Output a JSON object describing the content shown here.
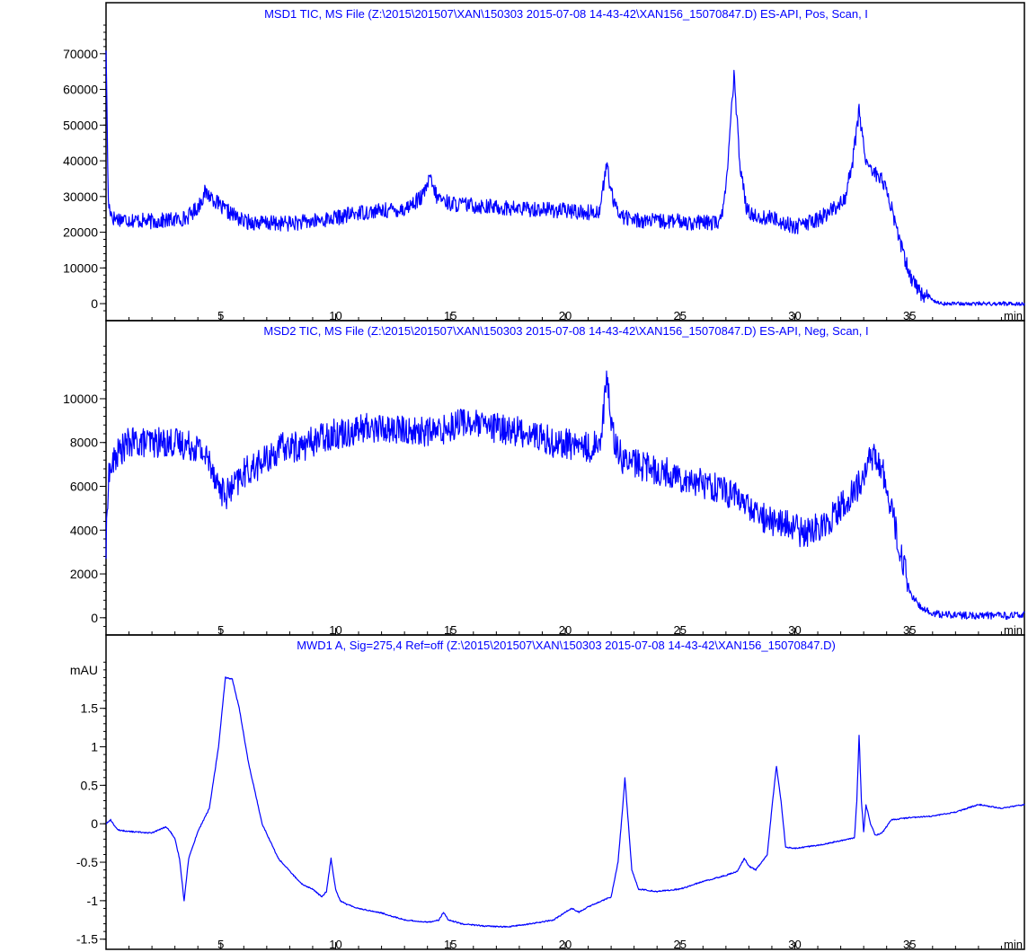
{
  "panels": [
    {
      "title": "MSD1 TIC, MS File (Z:\\2015\\201507\\XAN\\150303 2015-07-08 14-43-42\\XAN156_15070847.D)   ES-API, Pos, Scan, I"
    },
    {
      "title": "MSD2 TIC, MS File (Z:\\2015\\201507\\XAN\\150303 2015-07-08 14-43-42\\XAN156_15070847.D)   ES-API, Neg, Scan, I"
    },
    {
      "title": "MWD1 A, Sig=275,4 Ref=off (Z:\\2015\\201507\\XAN\\150303 2015-07-08 14-43-42\\XAN156_15070847.D)"
    }
  ],
  "chart_data": [
    {
      "type": "line",
      "title": "MSD1 TIC, MS File (Z:\\2015\\201507\\XAN\\150303 2015-07-08 14-43-42\\XAN156_15070847.D)   ES-API, Pos, Scan, I",
      "xlabel": "min",
      "ylabel": "",
      "xlim": [
        0,
        40
      ],
      "ylim": [
        -3000,
        78000
      ],
      "x_ticks": [
        5,
        10,
        15,
        20,
        25,
        30,
        35
      ],
      "y_ticks": [
        0,
        10000,
        20000,
        30000,
        40000,
        50000,
        60000,
        70000
      ],
      "line_color": "#0000ff",
      "series": [
        {
          "x": [
            0.0,
            0.1,
            0.3,
            1.0,
            2.0,
            3.0,
            3.5,
            4.0,
            4.3,
            4.6,
            5.0,
            5.5,
            6.0,
            7.0,
            8.0,
            9.0,
            10.0,
            11.0,
            12.0,
            13.0,
            13.8,
            14.1,
            14.4,
            15.0,
            16.0,
            17.0,
            18.0,
            19.0,
            20.0,
            21.0,
            21.5,
            21.8,
            22.1,
            22.5,
            23.0,
            24.0,
            25.0,
            26.0,
            26.8,
            27.1,
            27.35,
            27.6,
            27.9,
            28.5,
            29.0,
            30.0,
            31.0,
            31.8,
            32.2,
            32.5,
            32.8,
            33.1,
            33.4,
            33.8,
            34.2,
            34.6,
            35.0,
            35.5,
            36.0,
            36.5,
            37.0,
            38.0,
            39.0,
            40.0
          ],
          "values": [
            72000,
            28000,
            24000,
            23500,
            23000,
            23500,
            24000,
            27000,
            31000,
            30000,
            27000,
            25000,
            23000,
            22500,
            22500,
            23000,
            24000,
            25500,
            26000,
            26500,
            30000,
            35000,
            30000,
            28000,
            27500,
            27000,
            26500,
            26500,
            26000,
            25500,
            26000,
            39000,
            28000,
            24500,
            23500,
            23000,
            23000,
            22500,
            23000,
            40000,
            64000,
            40000,
            26000,
            24000,
            24000,
            21500,
            23500,
            27000,
            30000,
            39000,
            54000,
            40000,
            37000,
            35000,
            27000,
            17000,
            8000,
            3000,
            1000,
            0,
            0,
            0,
            0,
            0
          ]
        }
      ]
    },
    {
      "type": "line",
      "title": "MSD2 TIC, MS File (Z:\\2015\\201507\\XAN\\150303 2015-07-08 14-43-42\\XAN156_15070847.D)   ES-API, Neg, Scan, I",
      "xlabel": "min",
      "ylabel": "",
      "xlim": [
        0,
        40
      ],
      "ylim": [
        -500,
        12500
      ],
      "x_ticks": [
        5,
        10,
        15,
        20,
        25,
        30,
        35
      ],
      "y_ticks": [
        0,
        2000,
        4000,
        6000,
        8000,
        10000
      ],
      "line_color": "#0000ff",
      "series": [
        {
          "x": [
            0.0,
            0.1,
            0.5,
            1.0,
            2.0,
            3.0,
            4.0,
            4.6,
            4.9,
            5.2,
            5.6,
            6.0,
            7.0,
            7.7,
            8.5,
            9.5,
            10.5,
            11.5,
            12.5,
            13.5,
            14.5,
            15.5,
            16.5,
            17.5,
            18.5,
            19.5,
            20.5,
            21.2,
            21.6,
            21.8,
            22.1,
            22.5,
            23.5,
            24.5,
            25.5,
            26.5,
            27.5,
            28.5,
            29.5,
            30.5,
            31.5,
            32.5,
            33.0,
            33.4,
            33.8,
            34.2,
            34.6,
            35.0,
            35.5,
            36.0,
            37.0,
            38.0,
            39.0,
            40.0
          ],
          "values": [
            3000,
            6500,
            7500,
            8000,
            8000,
            8000,
            7800,
            7000,
            6000,
            5600,
            6000,
            6600,
            7200,
            7800,
            7800,
            8300,
            8500,
            8700,
            8600,
            8500,
            8500,
            9000,
            8700,
            8600,
            8400,
            8000,
            7900,
            7700,
            8500,
            11000,
            8300,
            7200,
            6900,
            6600,
            6300,
            6000,
            5500,
            4600,
            4300,
            3800,
            4500,
            5600,
            6500,
            7500,
            6800,
            5000,
            3000,
            1200,
            400,
            200,
            100,
            100,
            100,
            100
          ]
        }
      ]
    },
    {
      "type": "line",
      "title": "MWD1 A, Sig=275,4 Ref=off (Z:\\2015\\201507\\XAN\\150303 2015-07-08 14-43-42\\XAN156_15070847.D)",
      "xlabel": "min",
      "ylabel": "mAU",
      "xlim": [
        0,
        40
      ],
      "ylim": [
        -1.55,
        2.15
      ],
      "x_ticks": [
        5,
        10,
        15,
        20,
        25,
        30,
        35
      ],
      "y_ticks": [
        -1.5,
        -1,
        -0.5,
        0,
        0.5,
        1,
        1.5
      ],
      "line_color": "#0000ff",
      "series": [
        {
          "x": [
            0.0,
            0.2,
            0.5,
            1.0,
            2.0,
            2.6,
            2.8,
            3.0,
            3.2,
            3.4,
            3.6,
            4.0,
            4.5,
            4.9,
            5.2,
            5.5,
            5.8,
            6.2,
            6.8,
            7.5,
            8.5,
            9.0,
            9.4,
            9.6,
            9.8,
            10.0,
            10.2,
            10.5,
            11.0,
            12.0,
            13.0,
            14.0,
            14.5,
            14.7,
            14.9,
            15.5,
            16.5,
            17.5,
            18.5,
            19.5,
            20.0,
            20.3,
            20.6,
            21.0,
            22.0,
            22.3,
            22.5,
            22.6,
            22.7,
            22.9,
            23.2,
            24.0,
            25.0,
            26.0,
            27.0,
            27.5,
            27.8,
            28.0,
            28.3,
            28.8,
            29.0,
            29.2,
            29.4,
            29.6,
            30.0,
            31.0,
            32.0,
            32.6,
            32.7,
            32.8,
            32.9,
            33.0,
            33.1,
            33.3,
            33.5,
            33.8,
            34.2,
            35.0,
            36.0,
            37.0,
            37.5,
            38.0,
            39.0,
            40.0
          ],
          "values": [
            0.0,
            0.05,
            -0.08,
            -0.1,
            -0.12,
            -0.04,
            -0.1,
            -0.2,
            -0.45,
            -1.0,
            -0.45,
            -0.1,
            0.2,
            1.0,
            1.9,
            1.88,
            1.5,
            0.8,
            0.0,
            -0.45,
            -0.78,
            -0.85,
            -0.95,
            -0.88,
            -0.45,
            -0.85,
            -1.0,
            -1.05,
            -1.1,
            -1.16,
            -1.25,
            -1.28,
            -1.25,
            -1.15,
            -1.25,
            -1.3,
            -1.33,
            -1.34,
            -1.3,
            -1.25,
            -1.15,
            -1.1,
            -1.15,
            -1.08,
            -0.95,
            -0.5,
            0.2,
            0.6,
            0.2,
            -0.6,
            -0.85,
            -0.88,
            -0.85,
            -0.75,
            -0.67,
            -0.62,
            -0.45,
            -0.55,
            -0.6,
            -0.4,
            0.2,
            0.75,
            0.3,
            -0.3,
            -0.32,
            -0.28,
            -0.22,
            -0.18,
            0.3,
            1.15,
            0.3,
            -0.1,
            0.25,
            0.0,
            -0.15,
            -0.12,
            0.05,
            0.08,
            0.1,
            0.15,
            0.2,
            0.25,
            0.2,
            0.25
          ]
        }
      ]
    }
  ]
}
